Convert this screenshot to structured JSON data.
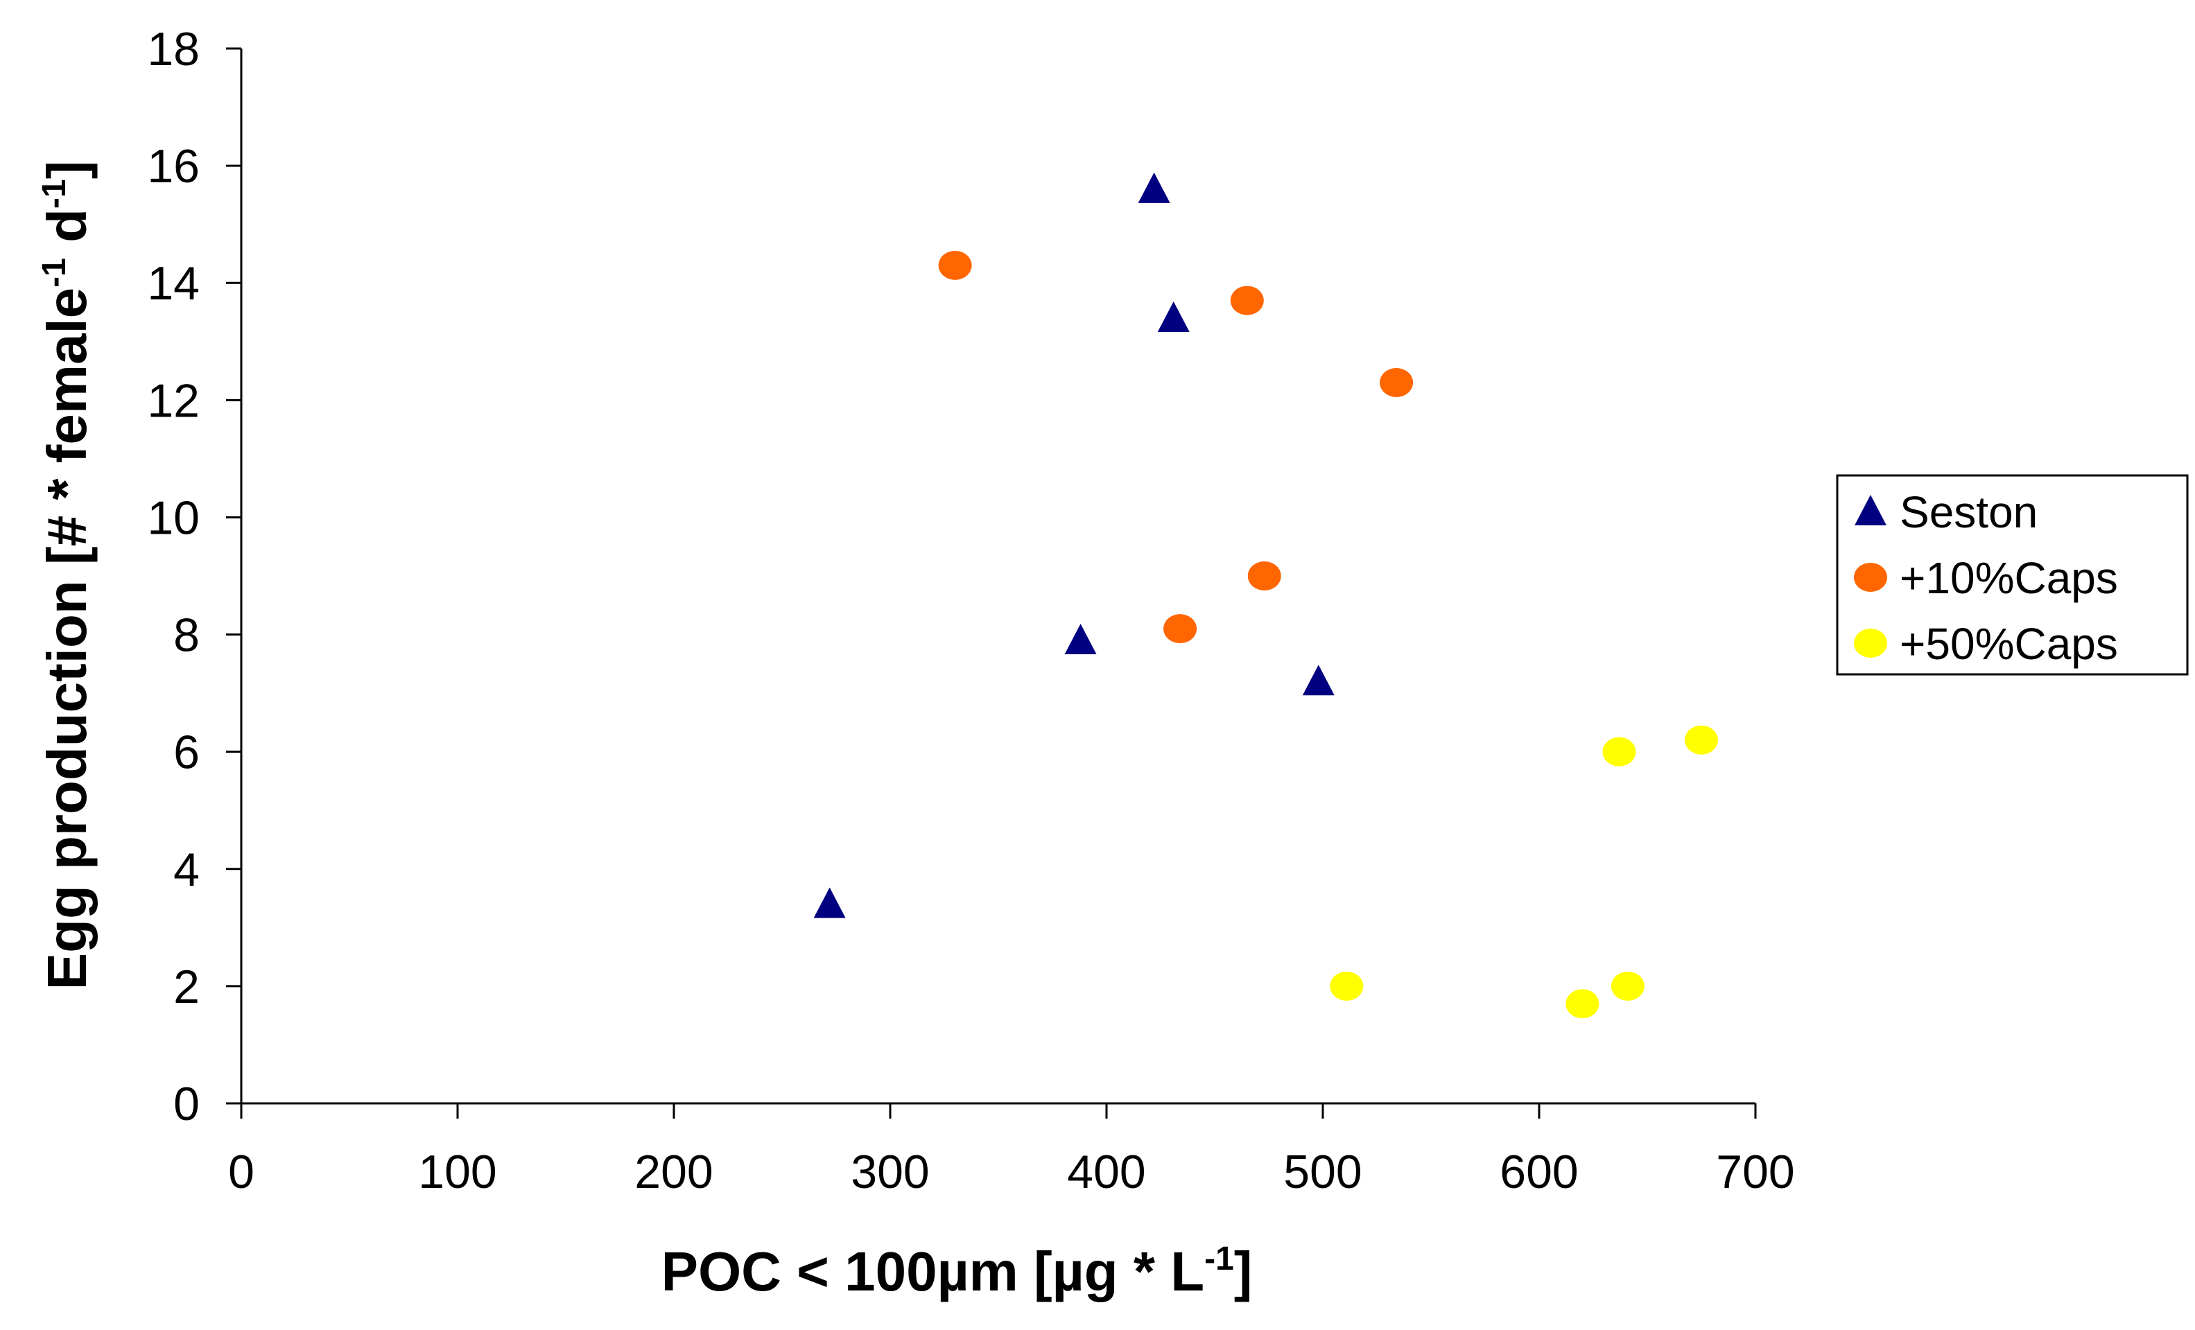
{
  "chart_data": {
    "type": "scatter",
    "title": "",
    "xlabel": {
      "main": "POC < 100µm [µg * L",
      "sup": "-1",
      "end": "]"
    },
    "ylabel": {
      "p1": "Egg production [# * female",
      "s1": "-1",
      "p2": " d",
      "s2": "-1",
      "p3": "]"
    },
    "xlim": [
      0,
      700
    ],
    "ylim": [
      0,
      18
    ],
    "x_ticks": [
      0,
      100,
      200,
      300,
      400,
      500,
      600,
      700
    ],
    "y_ticks": [
      0,
      2,
      4,
      6,
      8,
      10,
      12,
      14,
      16,
      18
    ],
    "grid": false,
    "legend_position": "right",
    "series": [
      {
        "name": "Seston",
        "marker": "triangle",
        "color": "#000080",
        "points": [
          [
            272,
            3.4
          ],
          [
            388,
            7.9
          ],
          [
            422,
            15.6
          ],
          [
            431,
            13.4
          ],
          [
            498,
            7.2
          ]
        ]
      },
      {
        "name": "+10%Caps",
        "marker": "circle",
        "color": "#FF6600",
        "points": [
          [
            330,
            14.3
          ],
          [
            434,
            8.1
          ],
          [
            465,
            13.7
          ],
          [
            473,
            9.0
          ],
          [
            534,
            12.3
          ]
        ]
      },
      {
        "name": "+50%Caps",
        "marker": "circle",
        "color": "#FFFF00",
        "points": [
          [
            511,
            2.0
          ],
          [
            620,
            1.7
          ],
          [
            637,
            6.0
          ],
          [
            641,
            2.0
          ],
          [
            675,
            6.2
          ]
        ]
      }
    ]
  }
}
